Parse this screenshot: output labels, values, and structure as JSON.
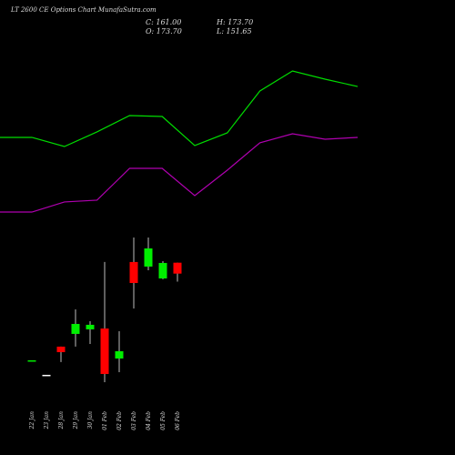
{
  "chart_data": {
    "type": "candlestick",
    "title": "LT 2600 CE Options Chart MunafaSutra.com",
    "info": {
      "close": "C: 161.00",
      "open": "O: 173.70",
      "high": "H: 173.70",
      "low": "L: 151.65"
    },
    "categories": [
      "22 Jan",
      "23 Jan",
      "28 Jan",
      "29 Jan",
      "30 Jan",
      "01 Feb",
      "02 Feb",
      "03 Feb",
      "04 Feb",
      "05 Feb",
      "06 Feb"
    ],
    "open": [
      60.2,
      43.3,
      76.1,
      90.9,
      96.2,
      97.2,
      62.3,
      174.5,
      169.2,
      155.4,
      173.7
    ],
    "high": [
      60.2,
      43.3,
      76.1,
      119.4,
      105.7,
      174.5,
      94.0,
      203.0,
      203.0,
      175.5,
      173.7
    ],
    "low": [
      60.2,
      43.3,
      58.1,
      76.1,
      79.2,
      34.8,
      46.4,
      120.5,
      164.9,
      154.4,
      151.65
    ],
    "close": [
      60.2,
      43.3,
      69.7,
      102.5,
      101.5,
      44.3,
      70.8,
      150.1,
      190.3,
      173.4,
      161.0
    ],
    "up_color": "#00ee00",
    "down_color": "#ff0000",
    "flat_colors": [
      "#00ee00",
      "#ffffff"
    ],
    "lines": [
      {
        "color": "#00dd00",
        "values": [
          319.4,
          308.8,
          325.8,
          344.8,
          343.7,
          309.9,
          324.7,
          373.4,
          396.6,
          387.1,
          378.6
        ]
      },
      {
        "color": "#b000b0",
        "values": [
          232.6,
          244.3,
          246.4,
          283.4,
          283.4,
          251.7,
          281.3,
          313.1,
          323.6,
          317.3,
          319.4
        ]
      }
    ],
    "ylim": [
      3,
      458
    ]
  }
}
